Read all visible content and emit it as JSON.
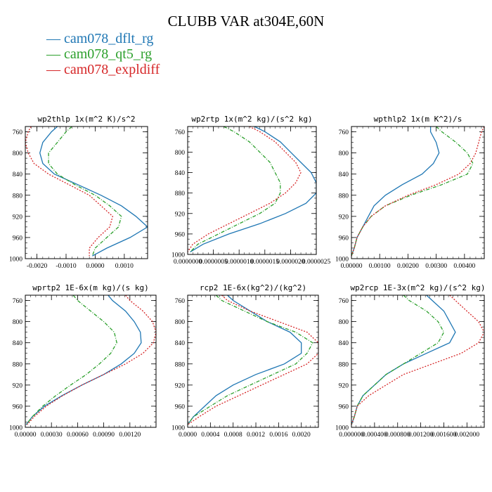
{
  "title": "CLUBB VAR at304E,60N",
  "legend": [
    {
      "label": "cam078_dflt_rg",
      "color": "#1f77b4",
      "dash": "solid"
    },
    {
      "label": "cam078_qt5_rg",
      "color": "#2ca02c",
      "dash": "dashdot"
    },
    {
      "label": "cam078_expldiff",
      "color": "#d62728",
      "dash": "dotted"
    }
  ],
  "chart_data": [
    {
      "type": "line",
      "title": "wp2thlp   1x(m^2 K)/s^2",
      "ylim": [
        1000,
        750
      ],
      "yticks": [
        760,
        800,
        840,
        880,
        920,
        960,
        1000
      ],
      "xlim": [
        -0.0024,
        0.0018
      ],
      "xticks": [
        -0.002,
        -0.001,
        0.0,
        0.001
      ],
      "xticklabels": [
        "-0.0020",
        "-0.0010",
        "0.0000",
        "0.0010"
      ],
      "y": [
        750,
        760,
        780,
        800,
        820,
        840,
        860,
        880,
        900,
        920,
        940,
        960,
        980,
        995
      ],
      "series": [
        {
          "name": "cam078_dflt_rg",
          "values": [
            -0.0013,
            -0.0015,
            -0.0018,
            -0.0019,
            -0.0018,
            -0.0014,
            -0.0006,
            0.0002,
            0.0009,
            0.0014,
            0.0018,
            0.0012,
            0.0004,
            -0.0001
          ]
        },
        {
          "name": "cam078_qt5_rg",
          "values": [
            -0.0008,
            -0.001,
            -0.0013,
            -0.0016,
            -0.0016,
            -0.0013,
            -0.0007,
            0.0,
            0.0005,
            0.0009,
            0.0008,
            0.0004,
            0.0,
            -0.0001
          ]
        },
        {
          "name": "cam078_expldiff",
          "values": [
            -0.0022,
            -0.0023,
            -0.0024,
            -0.0023,
            -0.0021,
            -0.0016,
            -0.0009,
            -0.0002,
            0.0002,
            0.0006,
            0.0005,
            0.0001,
            -0.0002,
            -0.0002
          ]
        }
      ]
    },
    {
      "type": "line",
      "title": "wp2rtp   1x(m^2 kg)/(s^2 kg)",
      "ylim": [
        1000,
        750
      ],
      "yticks": [
        760,
        800,
        840,
        880,
        920,
        960,
        1000
      ],
      "xlim": [
        0.0,
        2.5e-06
      ],
      "xticks": [
        0.0,
        5e-07,
        1e-06,
        1.5e-06,
        2e-06,
        2.5e-06
      ],
      "xticklabels": [
        "0.0000000",
        "0.0000005",
        "0.0000010",
        "0.0000015",
        "0.0000020",
        "0.0000025"
      ],
      "y": [
        750,
        760,
        780,
        800,
        820,
        840,
        860,
        880,
        900,
        920,
        940,
        960,
        980,
        995
      ],
      "series": [
        {
          "name": "cam078_dflt_rg",
          "values": [
            1.3e-06,
            1.5e-06,
            1.8e-06,
            2e-06,
            2.2e-06,
            2.4e-06,
            2.5e-06,
            2.5e-06,
            2.3e-06,
            1.9e-06,
            1.4e-06,
            8e-07,
            3e-07,
            5e-08
          ]
        },
        {
          "name": "cam078_qt5_rg",
          "values": [
            7e-07,
            9e-07,
            1.2e-06,
            1.4e-06,
            1.6e-06,
            1.7e-06,
            1.8e-06,
            1.8e-06,
            1.7e-06,
            1.4e-06,
            1e-06,
            6e-07,
            2e-07,
            5e-08
          ]
        },
        {
          "name": "cam078_expldiff",
          "values": [
            1.2e-06,
            1.4e-06,
            1.7e-06,
            1.9e-06,
            2.1e-06,
            2.2e-06,
            2.1e-06,
            1.9e-06,
            1.6e-06,
            1.2e-06,
            8e-07,
            4e-07,
            1e-07,
            0.0
          ]
        }
      ]
    },
    {
      "type": "line",
      "title": "wpthlp2   1x(m K^2)/s",
      "ylim": [
        1000,
        750
      ],
      "yticks": [
        760,
        800,
        840,
        880,
        920,
        960,
        1000
      ],
      "xlim": [
        0.0,
        0.0047
      ],
      "xticks": [
        0.0,
        0.001,
        0.002,
        0.003,
        0.004
      ],
      "xticklabels": [
        "0.00000",
        "0.00100",
        "0.00200",
        "0.00300",
        "0.00400"
      ],
      "y": [
        750,
        760,
        780,
        800,
        820,
        840,
        860,
        880,
        900,
        920,
        940,
        960,
        980,
        995
      ],
      "series": [
        {
          "name": "cam078_dflt_rg",
          "values": [
            0.0028,
            0.0028,
            0.003,
            0.0031,
            0.0029,
            0.0025,
            0.0018,
            0.0012,
            0.0008,
            0.0006,
            0.0004,
            0.0002,
            0.0001,
            0.0
          ]
        },
        {
          "name": "cam078_qt5_rg",
          "values": [
            0.003,
            0.0032,
            0.0037,
            0.0041,
            0.0043,
            0.0041,
            0.0032,
            0.0021,
            0.0012,
            0.0007,
            0.0004,
            0.0002,
            0.0001,
            0.0
          ]
        },
        {
          "name": "cam078_expldiff",
          "values": [
            0.0047,
            0.0046,
            0.0045,
            0.0044,
            0.0042,
            0.0038,
            0.003,
            0.002,
            0.0012,
            0.0007,
            0.0004,
            0.0002,
            0.0001,
            0.0
          ]
        }
      ]
    },
    {
      "type": "line",
      "title": "wprtp2   1E-6x(m kg)/(s kg)",
      "ylim": [
        1000,
        750
      ],
      "yticks": [
        760,
        800,
        840,
        880,
        920,
        960,
        1000
      ],
      "xlim": [
        0.0,
        0.0015
      ],
      "xticks": [
        0.0,
        0.0003,
        0.0006,
        0.0009,
        0.0012
      ],
      "xticklabels": [
        "0.00000",
        "0.00030",
        "0.00060",
        "0.00090",
        "0.00120"
      ],
      "y": [
        750,
        760,
        780,
        800,
        820,
        840,
        860,
        880,
        900,
        920,
        940,
        960,
        980,
        995
      ],
      "series": [
        {
          "name": "cam078_dflt_rg",
          "values": [
            0.00095,
            0.001,
            0.00115,
            0.00125,
            0.00132,
            0.00133,
            0.00125,
            0.0011,
            0.0009,
            0.00065,
            0.00042,
            0.00022,
            8e-05,
            1e-05
          ]
        },
        {
          "name": "cam078_qt5_rg",
          "values": [
            0.00055,
            0.0006,
            0.00075,
            0.0009,
            0.00102,
            0.00105,
            0.00098,
            0.00085,
            0.0007,
            0.00052,
            0.00035,
            0.0002,
            8e-05,
            1e-05
          ]
        },
        {
          "name": "cam078_expldiff",
          "values": [
            0.00115,
            0.0012,
            0.00135,
            0.00146,
            0.0015,
            0.00147,
            0.00135,
            0.00115,
            0.0009,
            0.00065,
            0.00043,
            0.00024,
            0.0001,
            2e-05
          ]
        }
      ]
    },
    {
      "type": "line",
      "title": "rcp2   1E-6x(kg^2)/(kg^2)",
      "ylim": [
        1000,
        750
      ],
      "yticks": [
        760,
        800,
        840,
        880,
        920,
        960,
        1000
      ],
      "xlim": [
        0.0,
        0.0023
      ],
      "xticks": [
        0.0,
        0.0004,
        0.0008,
        0.0012,
        0.0016,
        0.002
      ],
      "xticklabels": [
        "0.0000",
        "0.0004",
        "0.0008",
        "0.0012",
        "0.0016",
        "0.0020"
      ],
      "y": [
        750,
        760,
        780,
        800,
        820,
        840,
        860,
        880,
        900,
        920,
        940,
        960,
        980,
        995
      ],
      "series": [
        {
          "name": "cam078_dflt_rg",
          "values": [
            0.0007,
            0.0008,
            0.0011,
            0.0014,
            0.0018,
            0.002,
            0.002,
            0.0017,
            0.0012,
            0.0008,
            0.0005,
            0.0003,
            0.0001,
            0.0
          ]
        },
        {
          "name": "cam078_qt5_rg",
          "values": [
            0.0005,
            0.0006,
            0.001,
            0.0014,
            0.0019,
            0.0022,
            0.0021,
            0.0019,
            0.0015,
            0.0011,
            0.0007,
            0.0004,
            0.0001,
            0.0
          ]
        },
        {
          "name": "cam078_expldiff",
          "values": [
            0.0006,
            0.0007,
            0.0011,
            0.0016,
            0.0021,
            0.0023,
            0.0023,
            0.0021,
            0.0017,
            0.0013,
            0.0009,
            0.0005,
            0.0002,
            0.0
          ]
        }
      ]
    },
    {
      "type": "line",
      "title": "wp2rcp   1E-3x(m^2 kg)/(s^2 kg)",
      "ylim": [
        1000,
        750
      ],
      "yticks": [
        760,
        800,
        840,
        880,
        920,
        960,
        1000
      ],
      "xlim": [
        0.0,
        0.0023
      ],
      "xticks": [
        0.0,
        0.0004,
        0.0008,
        0.0012,
        0.0016,
        0.002
      ],
      "xticklabels": [
        "0.000000",
        "0.000400",
        "0.000800",
        "0.001200",
        "0.001600",
        "0.002000"
      ],
      "y": [
        750,
        760,
        780,
        800,
        820,
        840,
        860,
        880,
        900,
        920,
        940,
        960,
        980,
        995
      ],
      "series": [
        {
          "name": "cam078_dflt_rg",
          "values": [
            0.0013,
            0.0014,
            0.0016,
            0.0017,
            0.0018,
            0.0017,
            0.0013,
            0.0009,
            0.0006,
            0.0004,
            0.0002,
            0.0001,
            5e-05,
            0.0
          ]
        },
        {
          "name": "cam078_qt5_rg",
          "values": [
            0.0009,
            0.001,
            0.0013,
            0.0015,
            0.0016,
            0.0015,
            0.0012,
            0.0009,
            0.0006,
            0.0004,
            0.0002,
            0.0001,
            5e-05,
            0.0
          ]
        },
        {
          "name": "cam078_expldiff",
          "values": [
            0.0017,
            0.0018,
            0.002,
            0.0022,
            0.0023,
            0.0022,
            0.0019,
            0.0014,
            0.0009,
            0.0006,
            0.0003,
            0.0001,
            5e-05,
            0.0
          ]
        }
      ]
    }
  ]
}
